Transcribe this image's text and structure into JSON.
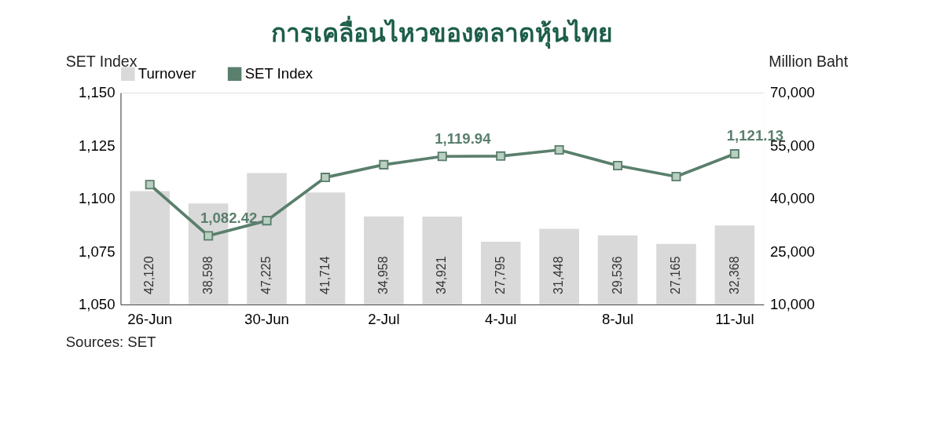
{
  "chart_data": {
    "type": "bar",
    "title": "การเคลื่อนไหวของตลาดหุ้นไทย",
    "ylabel": "SET Index",
    "y2label": "Million Baht",
    "categories": [
      "26-Jun",
      null,
      "30-Jun",
      null,
      "2-Jul",
      null,
      "4-Jul",
      null,
      "8-Jul",
      null,
      "11-Jul"
    ],
    "series": [
      {
        "name": "Turnover",
        "axis": "y2",
        "color": "#d9d9d9",
        "values": [
          42120,
          38598,
          47225,
          41714,
          34958,
          34921,
          27795,
          31448,
          29536,
          27165,
          32368
        ],
        "value_labels": [
          "42,120",
          "38,598",
          "47,225",
          "41,714",
          "34,958",
          "34,921",
          "27,795",
          "31,448",
          "29,536",
          "27,165",
          "32,368"
        ]
      },
      {
        "name": "SET Index",
        "type": "line",
        "color": "#5a7f6c",
        "marker": "square",
        "values": [
          1106.6,
          1082.42,
          1089.6,
          1110,
          1116,
          1119.94,
          1120.1,
          1123,
          1115.6,
          1110.4,
          1121.13
        ],
        "value_labels": [
          null,
          "1,082.42",
          null,
          null,
          null,
          "1,119.94",
          null,
          null,
          null,
          null,
          "1,121.13"
        ]
      }
    ],
    "ylim": [
      1050,
      1150
    ],
    "yticks": [
      {
        "value": 1050,
        "label": "1,050"
      },
      {
        "value": 1075,
        "label": "1,075"
      },
      {
        "value": 1100,
        "label": "1,100"
      },
      {
        "value": 1125,
        "label": "1,125"
      },
      {
        "value": 1150,
        "label": "1,150"
      }
    ],
    "y2lim": [
      10000,
      70000
    ],
    "y2ticks": [
      {
        "value": 10000,
        "label": "10,000"
      },
      {
        "value": 25000,
        "label": "25,000"
      },
      {
        "value": 40000,
        "label": "40,000"
      },
      {
        "value": 55000,
        "label": "55,000"
      },
      {
        "value": 70000,
        "label": "70,000"
      }
    ],
    "grid": false,
    "legend": "top",
    "annotations": [
      "Sources: SET"
    ]
  }
}
